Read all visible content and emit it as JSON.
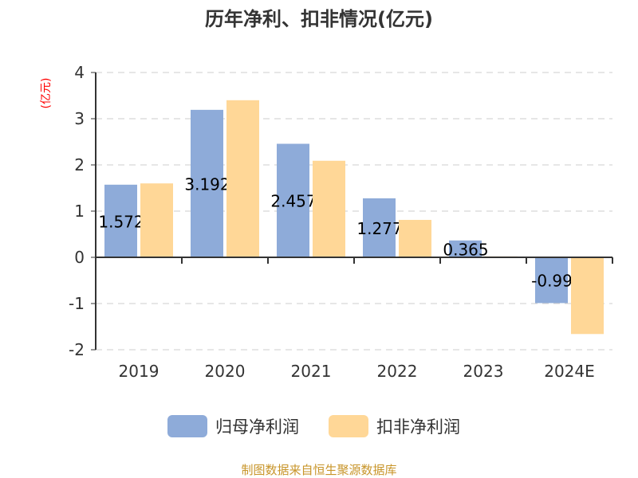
{
  "chart_data": {
    "type": "bar",
    "title": "历年净利、扣非情况(亿元)",
    "ylabel": "(亿元)",
    "categories": [
      "2019",
      "2020",
      "2021",
      "2022",
      "2023",
      "2024E"
    ],
    "series": [
      {
        "name": "归母净利润",
        "color": "#8eabd9",
        "values": [
          1.572,
          3.192,
          2.457,
          1.277,
          0.365,
          -0.99
        ],
        "labels": [
          "1.572",
          "3.192",
          "2.457",
          "1.277",
          "0.365",
          "-0.99"
        ]
      },
      {
        "name": "扣非净利润",
        "color": "#ffd797",
        "values": [
          1.6,
          3.4,
          2.09,
          0.81,
          0.02,
          -1.66
        ]
      }
    ],
    "ylim": [
      -2,
      4
    ],
    "yticks": [
      "-2",
      "-1",
      "0",
      "1",
      "2",
      "3",
      "4"
    ],
    "grid": true,
    "legend": "bottom"
  },
  "footer": "制图数据来自恒生聚源数据库"
}
